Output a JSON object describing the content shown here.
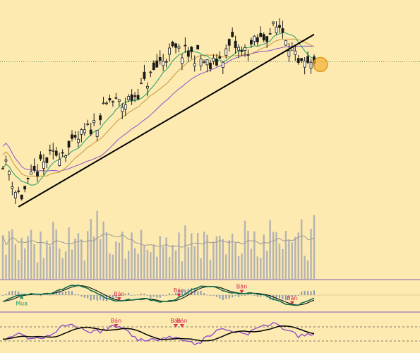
{
  "colors": {
    "background": "#fdeab0",
    "candle": "#1a1a1a",
    "ma_short": "#1f9f6a",
    "ma_mid": "#c8963c",
    "ma_long": "#8855cc",
    "trendline": "#000000",
    "volume": "#b3b3b3",
    "volume_avg": "#9a9a9a",
    "macd_line": "#0e6e4a",
    "signal_line": "#000000",
    "histogram": "#8a9bb0",
    "rsi_line": "#8844cc",
    "rsi_avg": "#000000",
    "buy": "#1f9f6a",
    "sell": "#d93050",
    "marker": "#f5a623",
    "separator": "#7a5cc0"
  },
  "chart_data": [
    {
      "type": "candlestick",
      "panel": "price",
      "sessions": 100,
      "close_profile": [
        [
          0,
          44
        ],
        [
          2,
          40
        ],
        [
          4,
          33
        ],
        [
          6,
          31
        ],
        [
          10,
          39
        ],
        [
          14,
          44
        ],
        [
          18,
          47
        ],
        [
          22,
          49
        ],
        [
          26,
          54
        ],
        [
          30,
          58
        ],
        [
          34,
          66
        ],
        [
          38,
          64
        ],
        [
          42,
          68
        ],
        [
          46,
          73
        ],
        [
          50,
          80
        ],
        [
          54,
          84
        ],
        [
          58,
          83
        ],
        [
          62,
          82
        ],
        [
          66,
          78
        ],
        [
          70,
          82
        ],
        [
          73,
          87
        ],
        [
          76,
          83
        ],
        [
          79,
          86
        ],
        [
          82,
          88
        ],
        [
          86,
          92
        ],
        [
          88,
          93
        ],
        [
          90,
          90
        ],
        [
          92,
          84
        ],
        [
          94,
          78
        ],
        [
          96,
          78
        ],
        [
          98,
          78
        ],
        [
          99,
          78
        ]
      ],
      "series": [
        {
          "role": "short-moving-average"
        },
        {
          "role": "medium-moving-average"
        },
        {
          "role": "long-moving-average"
        }
      ],
      "trendline": {
        "from": [
          5,
          27
        ],
        "to": [
          99,
          90
        ]
      },
      "reference_level": 80,
      "marker_level": 79,
      "ylim": [
        20,
        100
      ],
      "grid": false,
      "legend": "none"
    },
    {
      "type": "bar",
      "panel": "volume",
      "series": [
        {
          "role": "volume"
        },
        {
          "role": "volume-average"
        }
      ],
      "ylim": [
        0,
        100
      ],
      "grid": false,
      "legend": "none"
    },
    {
      "type": "line",
      "panel": "macd",
      "series": [
        {
          "role": "macd-line"
        },
        {
          "role": "signal-line"
        },
        {
          "role": "histogram"
        }
      ],
      "annotations": [
        {
          "text": "Mua",
          "x": 6,
          "type": "buy"
        },
        {
          "text": "Bán",
          "x": 37,
          "type": "sell"
        },
        {
          "text": "Bán",
          "x": 56,
          "type": "sell"
        },
        {
          "text": "Bán",
          "x": 76,
          "type": "sell"
        },
        {
          "text": "Bán",
          "x": 92,
          "type": "sell"
        }
      ],
      "ylim": [
        -1,
        1
      ],
      "grid": false,
      "legend": "none"
    },
    {
      "type": "line",
      "panel": "rsi",
      "series": [
        {
          "role": "rsi"
        },
        {
          "role": "rsi-average"
        }
      ],
      "reference_levels": [
        70,
        30
      ],
      "annotations": [
        {
          "text": "Bán",
          "x": 36,
          "type": "sell"
        },
        {
          "text": "Bán",
          "x": 55,
          "type": "sell"
        },
        {
          "text": "Bán",
          "x": 57,
          "type": "sell"
        }
      ],
      "ylim": [
        0,
        100
      ],
      "grid": false,
      "legend": "none"
    }
  ]
}
